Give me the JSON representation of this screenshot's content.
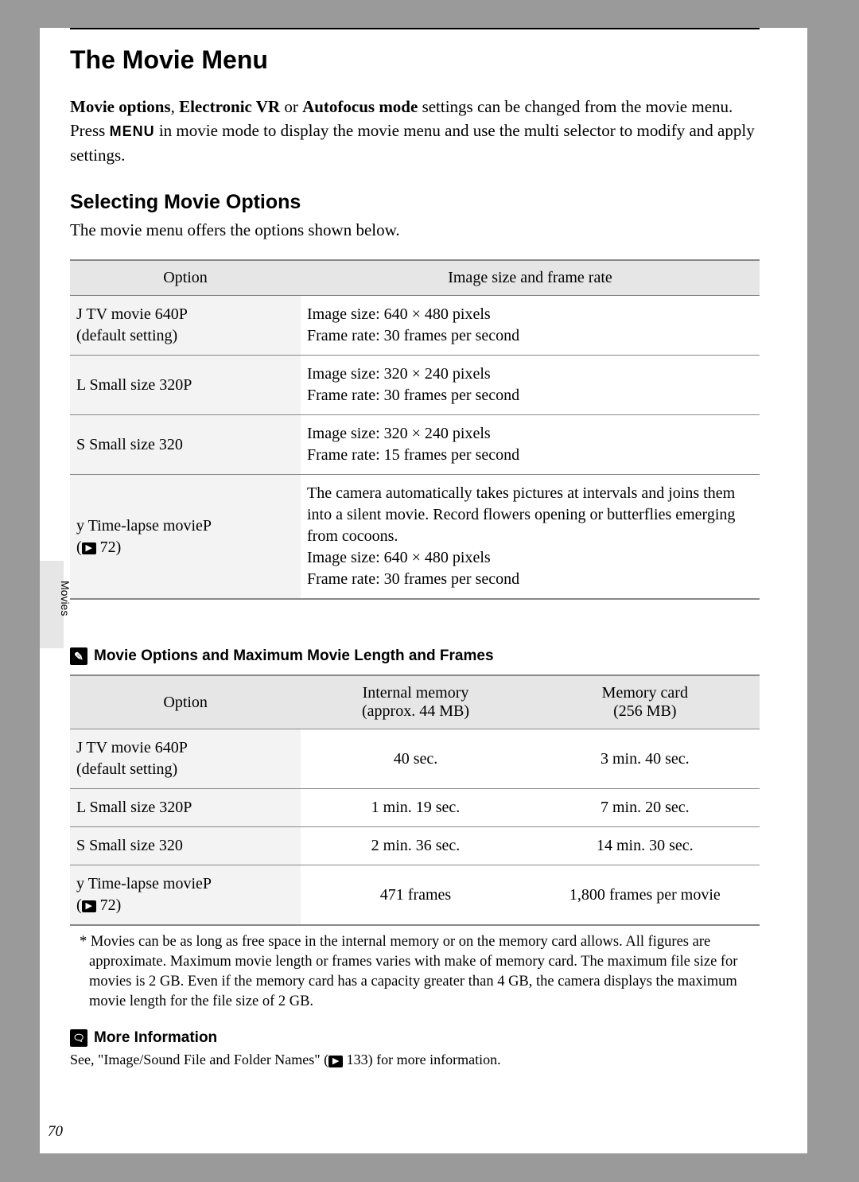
{
  "title": "The Movie Menu",
  "intro_parts": {
    "b1": "Movie options",
    "sep1": ", ",
    "b2": "Electronic VR",
    "sep2": " or ",
    "b3": "Autofocus mode",
    "rest_a": " settings can be changed from the movie menu. Press ",
    "menu_word": "MENU",
    "rest_b": " in movie mode to display the movie menu and use the multi selector to modify and apply settings."
  },
  "subtitle": "Selecting Movie Options",
  "subintro": "The movie menu offers the options shown below.",
  "table1": {
    "headers": [
      "Option",
      "Image size and frame rate"
    ],
    "rows": [
      {
        "opt_pre": "J   TV movie 640P",
        "opt_post": "(default setting)",
        "desc": "Image size: 640 × 480 pixels\nFrame rate: 30 frames per second"
      },
      {
        "opt_pre": "L   Small size 320P",
        "opt_post": "",
        "desc": "Image size: 320 × 240 pixels\nFrame rate: 30 frames per second"
      },
      {
        "opt_pre": "S   Small size 320",
        "opt_post": "",
        "desc": "Image size: 320 × 240 pixels\nFrame rate: 15 frames per second"
      },
      {
        "opt_pre": "y   Time-lapse movieP",
        "opt_post_ref": "72",
        "desc": "The camera automatically takes pictures at intervals and joins them into a silent movie. Record flowers opening or butterflies emerging from cocoons.\nImage size: 640 × 480 pixels\nFrame rate: 30 frames per second"
      }
    ]
  },
  "side_label": "Movies",
  "note_heading": "Movie Options and Maximum Movie Length and Frames",
  "table2": {
    "headers": [
      "Option",
      "Internal memory\n(approx. 44 MB)",
      "Memory card\n(256 MB)"
    ],
    "rows": [
      {
        "opt_pre": "J   TV movie 640P",
        "opt_post": "(default setting)",
        "c1": "40 sec.",
        "c2": "3 min. 40 sec."
      },
      {
        "opt_pre": "L   Small size 320P",
        "opt_post": "",
        "c1": "1 min. 19 sec.",
        "c2": "7 min. 20 sec."
      },
      {
        "opt_pre": "S   Small size 320",
        "opt_post": "",
        "c1": "2 min. 36 sec.",
        "c2": "14 min. 30 sec."
      },
      {
        "opt_pre": "y   Time-lapse movieP",
        "opt_post_ref": "72",
        "c1": "471 frames",
        "c2": "1,800 frames per movie"
      }
    ]
  },
  "footnote": "*  Movies can be as long as free space in the internal memory or on the memory card allows. All figures are approximate. Maximum movie length or frames varies with make of memory card. The maximum file size for movies is 2 GB. Even if the memory card has a capacity greater than 4 GB, the camera displays the maximum movie length for the file size of 2 GB.",
  "more_info_heading": "More Information",
  "more_info_a": "See, \"Image/Sound File and Folder Names\" (",
  "more_info_ref": "133",
  "more_info_b": ") for more information.",
  "page_num": "70",
  "col_widths": {
    "t1_opt": "290px",
    "t2_opt": "290px",
    "t2_c": "288px"
  }
}
